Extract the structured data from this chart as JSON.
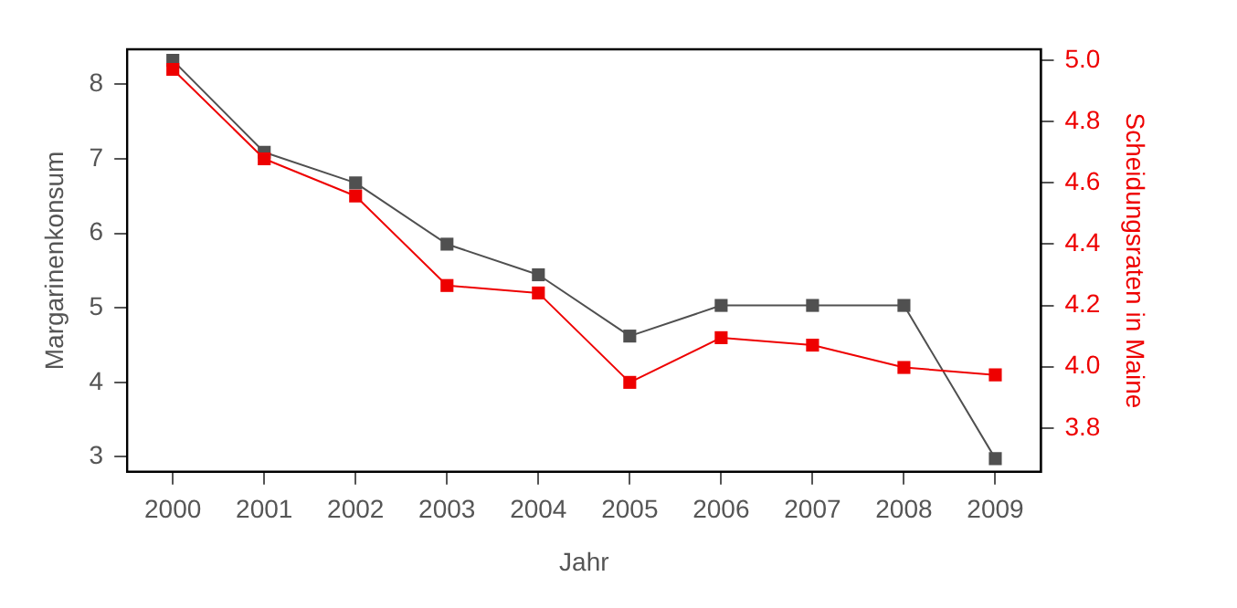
{
  "chart_data": {
    "type": "line",
    "xlabel": "Jahr",
    "ylabel": "Margarinenkonsum",
    "y2label": "Scheidungsraten in Maine",
    "categories": [
      "2000",
      "2001",
      "2002",
      "2003",
      "2004",
      "2005",
      "2006",
      "2007",
      "2008",
      "2009"
    ],
    "series": [
      {
        "color": "#505050",
        "axis": "y2",
        "values": [
          5.0,
          4.7,
          4.6,
          4.4,
          4.3,
          4.1,
          4.2,
          4.2,
          4.2,
          3.7
        ]
      },
      {
        "color": "#ee0000",
        "values": [
          8.2,
          7.0,
          6.5,
          5.3,
          5.2,
          4.0,
          4.6,
          4.5,
          4.2,
          4.1
        ]
      }
    ],
    "ylim": [
      2.8,
      8.47
    ],
    "yticks": [
      3,
      4,
      5,
      6,
      7,
      8
    ],
    "y2lim": [
      3.657,
      5.036
    ],
    "y2ticks": [
      {
        "value": 3.8,
        "label": "3.8"
      },
      {
        "value": 4.0,
        "label": "4.0"
      },
      {
        "value": 4.2,
        "label": "4.2"
      },
      {
        "value": 4.4,
        "label": "4.4"
      },
      {
        "value": 4.6,
        "label": "4.6"
      },
      {
        "value": 4.8,
        "label": "4.8"
      },
      {
        "value": 5.0,
        "label": "5.0"
      }
    ],
    "marker": "square",
    "line_style": "solid",
    "grid": false,
    "legend": false
  }
}
